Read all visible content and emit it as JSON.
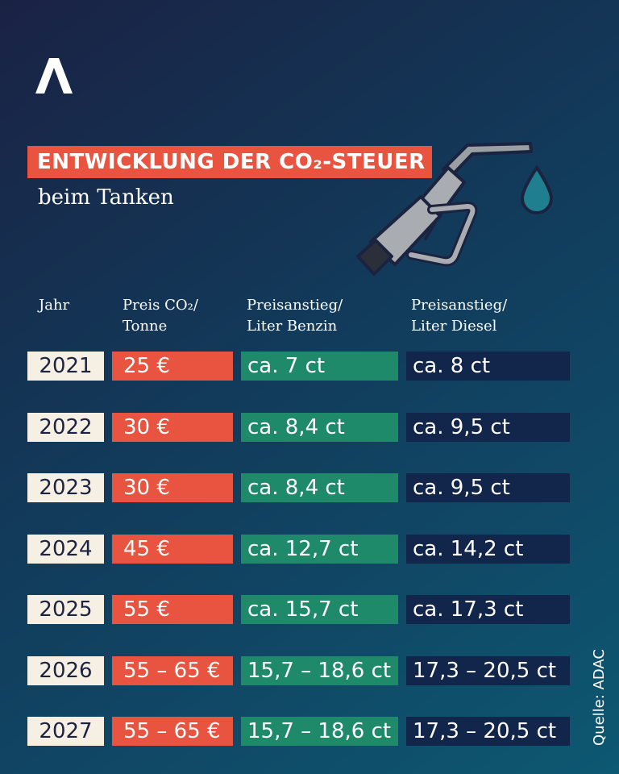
{
  "chart_data": {
    "type": "table",
    "title": "ENTWICKLUNG DER CO₂-STEUER",
    "subtitle": "beim Tanken",
    "columns": [
      {
        "key": "year",
        "label": "Jahr"
      },
      {
        "key": "price",
        "label": "Preis CO₂/ Tonne"
      },
      {
        "key": "benzin",
        "label": "Preisanstieg/ Liter Benzin"
      },
      {
        "key": "diesel",
        "label": "Preisanstieg/ Liter Diesel"
      }
    ],
    "rows": [
      {
        "year": "2021",
        "price": "25 €",
        "benzin": "ca. 7 ct",
        "diesel": "ca. 8 ct"
      },
      {
        "year": "2022",
        "price": "30 €",
        "benzin": "ca. 8,4 ct",
        "diesel": "ca. 9,5 ct"
      },
      {
        "year": "2023",
        "price": "30 €",
        "benzin": "ca. 8,4 ct",
        "diesel": "ca. 9,5 ct"
      },
      {
        "year": "2024",
        "price": "45 €",
        "benzin": "ca. 12,7 ct",
        "diesel": "ca. 14,2 ct"
      },
      {
        "year": "2025",
        "price": "55 €",
        "benzin": "ca. 15,7 ct",
        "diesel": "ca. 17,3 ct"
      },
      {
        "year": "2026",
        "price": "55 – 65 €",
        "benzin": "15,7 – 18,6 ct",
        "diesel": "17,3 – 20,5 ct"
      },
      {
        "year": "2027",
        "price": "55 – 65 €",
        "benzin": "15,7 – 18,6 ct",
        "diesel": "17,3 – 20,5 ct"
      }
    ],
    "source": "Quelle: ADAC"
  },
  "colors": {
    "title_bg": "#e8543f",
    "year_bg": "#f6efe4",
    "price_bg": "#e8543f",
    "benzin_bg": "#1e8a6a",
    "diesel_bg": "#12254a"
  },
  "icons": {
    "logo": "adac-logo-icon",
    "illustration": "fuel-nozzle-icon",
    "drop": "fuel-drop-icon"
  }
}
